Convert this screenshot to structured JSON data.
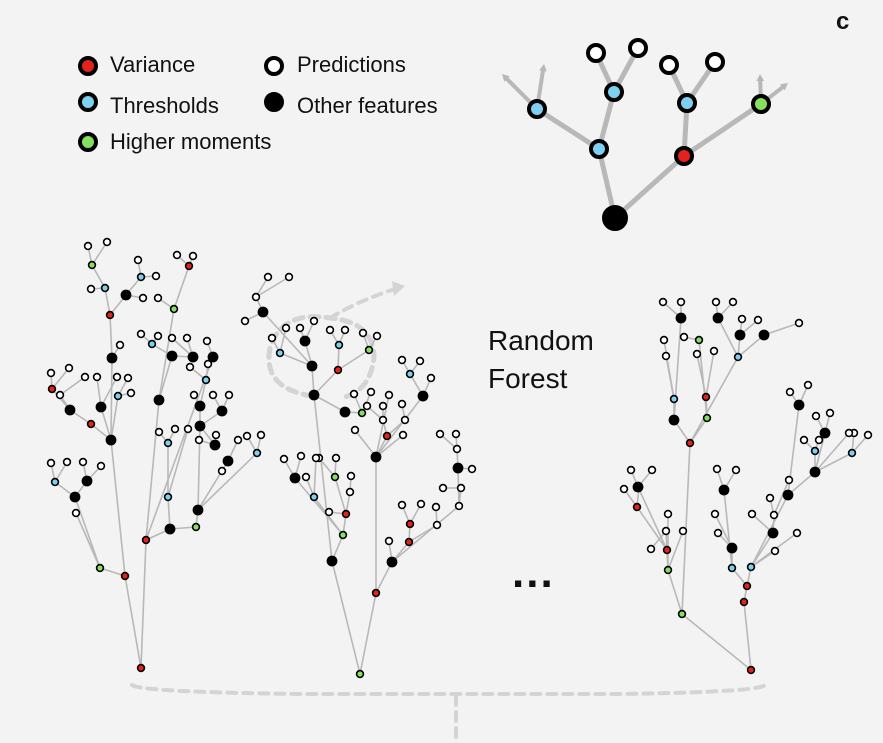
{
  "panel_label": "c",
  "title_line1": "Random",
  "title_line2": "Forest",
  "ellipsis": "...",
  "legend": [
    {
      "key": "variance",
      "label": "Variance",
      "color": "#e2231a"
    },
    {
      "key": "predictions",
      "label": "Predictions",
      "color": "#ffffff"
    },
    {
      "key": "thresholds",
      "label": "Thresholds",
      "color": "#7fd0f0"
    },
    {
      "key": "other",
      "label": "Other features",
      "color": "#000000"
    },
    {
      "key": "higher",
      "label": "Higher moments",
      "color": "#86e060"
    }
  ],
  "colors": {
    "variance": "#e2231a",
    "thresholds": "#7fd0f0",
    "higher": "#86e060",
    "other": "#000000",
    "predictions": "#ffffff",
    "edge": "#b8b8b8",
    "dashed": "#d4d4d4"
  }
}
